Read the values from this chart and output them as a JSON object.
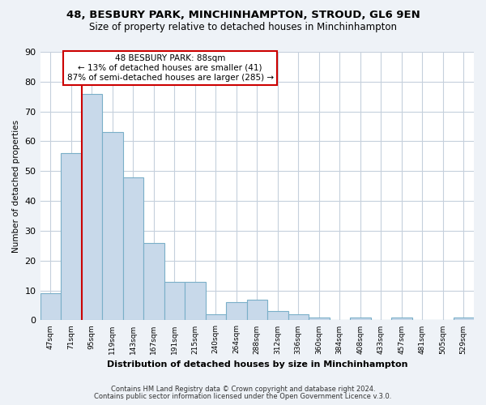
{
  "title": "48, BESBURY PARK, MINCHINHAMPTON, STROUD, GL6 9EN",
  "subtitle": "Size of property relative to detached houses in Minchinhampton",
  "xlabel": "Distribution of detached houses by size in Minchinhampton",
  "ylabel": "Number of detached properties",
  "bin_labels": [
    "47sqm",
    "71sqm",
    "95sqm",
    "119sqm",
    "143sqm",
    "167sqm",
    "191sqm",
    "215sqm",
    "240sqm",
    "264sqm",
    "288sqm",
    "312sqm",
    "336sqm",
    "360sqm",
    "384sqm",
    "408sqm",
    "433sqm",
    "457sqm",
    "481sqm",
    "505sqm",
    "529sqm"
  ],
  "bar_heights": [
    9,
    56,
    76,
    63,
    48,
    26,
    13,
    13,
    2,
    6,
    7,
    3,
    2,
    1,
    0,
    1,
    0,
    1,
    0,
    0,
    1
  ],
  "bar_color": "#c8d9ea",
  "bar_edge_color": "#7aafc8",
  "vline_x_index": 2,
  "vline_color": "#cc0000",
  "annotation_line1": "48 BESBURY PARK: 88sqm",
  "annotation_line2": "← 13% of detached houses are smaller (41)",
  "annotation_line3": "87% of semi-detached houses are larger (285) →",
  "annotation_box_edge_color": "#cc0000",
  "ylim": [
    0,
    90
  ],
  "yticks": [
    0,
    10,
    20,
    30,
    40,
    50,
    60,
    70,
    80,
    90
  ],
  "footer1": "Contains HM Land Registry data © Crown copyright and database right 2024.",
  "footer2": "Contains public sector information licensed under the Open Government Licence v.3.0.",
  "bg_color": "#eef2f7",
  "plot_bg_color": "#ffffff",
  "grid_color": "#c5d0dc",
  "title_fontsize": 9.5,
  "subtitle_fontsize": 8.5
}
